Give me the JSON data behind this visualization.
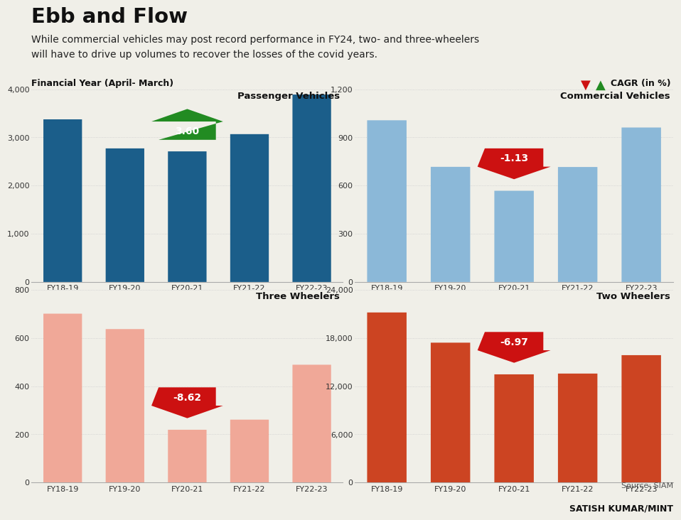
{
  "title": "Ebb and Flow",
  "subtitle": "While commercial vehicles may post record performance in FY24, two- and three-wheelers\nwill have to drive up volumes to recover the losses of the covid years.",
  "axis_label": "Financial Year (April- March)",
  "legend_label": "CAGR (in %)",
  "source": "Source: SIAM",
  "credit": "SATISH KUMAR/MINT",
  "categories": [
    "FY18-19",
    "FY19-20",
    "FY20-21",
    "FY21-22",
    "FY22-23"
  ],
  "charts": [
    {
      "title": "Passenger Vehicles",
      "values": [
        3376,
        2773,
        2711,
        3069,
        3891
      ],
      "color": "#1B5E8A",
      "ylim": [
        0,
        4000
      ],
      "yticks": [
        0,
        1000,
        2000,
        3000,
        4000
      ],
      "cagr": "3.60",
      "cagr_positive": true,
      "cagr_bar_index": 2,
      "row": 0,
      "col": 0
    },
    {
      "title": "Commercial Vehicles",
      "values": [
        1007,
        717,
        568,
        716,
        962
      ],
      "color": "#8BB8D8",
      "ylim": [
        0,
        1200
      ],
      "yticks": [
        0,
        300,
        600,
        900,
        1200
      ],
      "cagr": "-1.13",
      "cagr_positive": false,
      "cagr_bar_index": 2,
      "row": 0,
      "col": 1
    },
    {
      "title": "Three Wheelers",
      "values": [
        701,
        637,
        219,
        261,
        489
      ],
      "color": "#F0A898",
      "ylim": [
        0,
        800
      ],
      "yticks": [
        0,
        200,
        400,
        600,
        800
      ],
      "cagr": "-8.62",
      "cagr_positive": false,
      "cagr_bar_index": 2,
      "row": 1,
      "col": 0
    },
    {
      "title": "Two Wheelers",
      "values": [
        21180,
        17417,
        13471,
        13569,
        15862
      ],
      "color": "#CC4422",
      "ylim": [
        0,
        24000
      ],
      "yticks": [
        0,
        6000,
        12000,
        18000,
        24000
      ],
      "cagr": "-6.97",
      "cagr_positive": false,
      "cagr_bar_index": 2,
      "row": 1,
      "col": 1
    }
  ],
  "background_color": "#F0EFE8",
  "grid_color": "#CCCCCC",
  "divider_color": "#BBBBBB"
}
